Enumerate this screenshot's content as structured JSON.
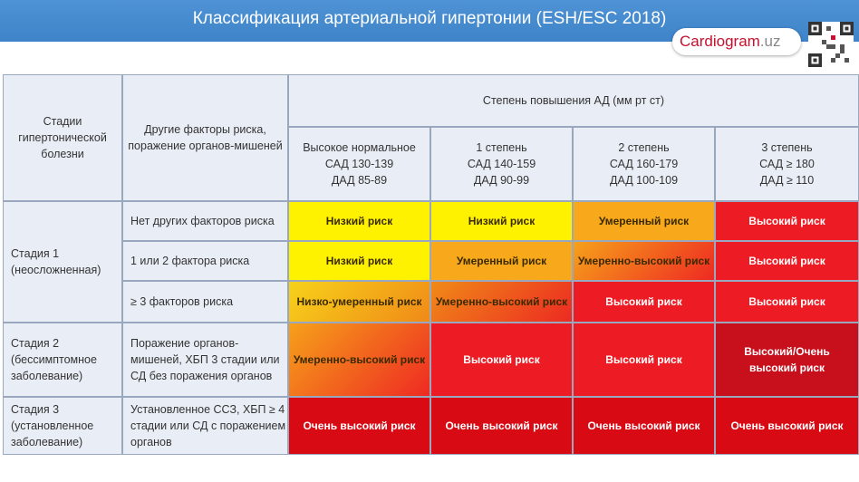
{
  "title": "Классификация артериальной гипертонии (ESH/ESC 2018)",
  "logo": {
    "main": "Cardiogram",
    "ext": ".uz",
    "icon": "qr-code-icon"
  },
  "colors": {
    "yellow": "#fff200",
    "orange": "#f7a81b",
    "red": "#ed1c24",
    "dark_red": "#c8101d",
    "header_blue": "#4f93d6"
  },
  "table": {
    "col_stage": "Стадии гипертонической болезни",
    "col_factors": "Другие факторы риска, поражение органов-мишеней",
    "col_bp": "Степень повышения АД (мм рт ст)",
    "bp_cols": [
      {
        "name": "Высокое нормальное",
        "sad": "САД 130-139",
        "dad": "ДАД 85-89"
      },
      {
        "name": "1 степень",
        "sad": "САД 140-159",
        "dad": "ДАД 90-99"
      },
      {
        "name": "2 степень",
        "sad": "САД 160-179",
        "dad": "ДАД 100-109"
      },
      {
        "name": "3 степень",
        "sad": "САД ≥ 180",
        "dad": "ДАД ≥ 110"
      }
    ],
    "stages": [
      {
        "name": "Стадия 1 (неосложненная)"
      },
      {
        "name": "Стадия 2 (бессимптомное заболевание)"
      },
      {
        "name": "Стадия 3 (установленное заболевание)"
      }
    ],
    "rows": [
      {
        "factor": "Нет других факторов риска",
        "risks": [
          "Низкий риск",
          "Низкий риск",
          "Умеренный риск",
          "Высокий риск"
        ]
      },
      {
        "factor": "1 или 2 фактора риска",
        "risks": [
          "Низкий риск",
          "Умеренный риск",
          "Умеренно-высокий риск",
          "Высокий риск"
        ]
      },
      {
        "factor": "≥ 3 факторов риска",
        "risks": [
          "Низко-умеренный риск",
          "Умеренно-высокий риск",
          "Высокий риск",
          "Высокий риск"
        ]
      },
      {
        "factor": "Поражение органов-мишеней, ХБП 3 стадии или СД без поражения органов",
        "risks": [
          "Умеренно-высокий риск",
          "Высокий риск",
          "Высокий риск",
          "Высокий/Очень высокий риск"
        ]
      },
      {
        "factor": "Установленное ССЗ, ХБП ≥ 4 стадии или СД с поражением органов",
        "risks": [
          "Очень высокий риск",
          "Очень высокий риск",
          "Очень высокий риск",
          "Очень высокий риск"
        ]
      }
    ]
  }
}
